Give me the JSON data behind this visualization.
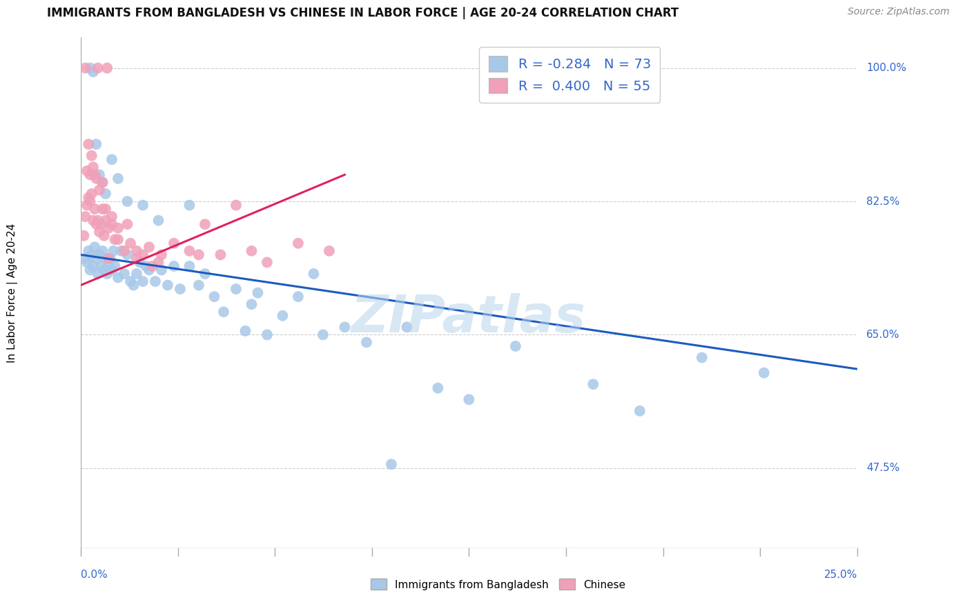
{
  "title": "IMMIGRANTS FROM BANGLADESH VS CHINESE IN LABOR FORCE | AGE 20-24 CORRELATION CHART",
  "source": "Source: ZipAtlas.com",
  "blue_label": "Immigrants from Bangladesh",
  "pink_label": "Chinese",
  "blue_R": "-0.284",
  "blue_N": "73",
  "pink_R": "0.400",
  "pink_N": "55",
  "blue_color": "#a8c8e8",
  "pink_color": "#f0a0b8",
  "blue_line_color": "#1a5bbf",
  "pink_line_color": "#e02060",
  "watermark": "ZIPatlas",
  "watermark_color": "#b8d4ec",
  "ylabel_axis": "In Labor Force | Age 20-24",
  "xmin": 0.0,
  "xmax": 25.0,
  "ymin": 37.0,
  "ymax": 104.0,
  "yticks": [
    47.5,
    65.0,
    82.5,
    100.0
  ],
  "ytick_labels": [
    "47.5%",
    "65.0%",
    "82.5%",
    "100.0%"
  ],
  "xtick_left": "0.0%",
  "xtick_right": "25.0%",
  "label_color": "#3366cc",
  "blue_line_x0": 0.0,
  "blue_line_y0": 75.5,
  "blue_line_x1": 25.0,
  "blue_line_y1": 60.5,
  "pink_line_x0": 0.0,
  "pink_line_y0": 71.5,
  "pink_line_x1": 8.5,
  "pink_line_y1": 86.0,
  "blue_pts_x": [
    0.15,
    0.2,
    0.25,
    0.3,
    0.35,
    0.4,
    0.45,
    0.5,
    0.55,
    0.6,
    0.65,
    0.7,
    0.75,
    0.8,
    0.85,
    0.9,
    0.95,
    1.0,
    1.05,
    1.1,
    1.2,
    1.3,
    1.4,
    1.5,
    1.6,
    1.7,
    1.8,
    1.9,
    2.0,
    2.1,
    2.2,
    2.4,
    2.6,
    2.8,
    3.0,
    3.2,
    3.5,
    3.8,
    4.0,
    4.3,
    4.6,
    5.0,
    5.3,
    5.7,
    6.0,
    6.5,
    7.0,
    7.8,
    8.5,
    9.2,
    10.5,
    11.5,
    12.5,
    14.0,
    16.5,
    18.0,
    20.0,
    22.0,
    0.3,
    0.4,
    0.5,
    0.6,
    0.7,
    0.8,
    1.0,
    1.2,
    1.5,
    2.0,
    2.5,
    3.5,
    5.5,
    7.5,
    10.0
  ],
  "blue_pts_y": [
    75.0,
    74.5,
    76.0,
    73.5,
    75.5,
    74.0,
    76.5,
    75.0,
    73.0,
    75.5,
    74.0,
    76.0,
    73.5,
    75.0,
    73.0,
    74.5,
    75.0,
    73.5,
    76.0,
    74.0,
    72.5,
    76.0,
    73.0,
    75.5,
    72.0,
    71.5,
    73.0,
    74.5,
    72.0,
    74.0,
    73.5,
    72.0,
    73.5,
    71.5,
    74.0,
    71.0,
    74.0,
    71.5,
    73.0,
    70.0,
    68.0,
    71.0,
    65.5,
    70.5,
    65.0,
    67.5,
    70.0,
    65.0,
    66.0,
    64.0,
    66.0,
    58.0,
    56.5,
    63.5,
    58.5,
    55.0,
    62.0,
    60.0,
    100.0,
    99.5,
    90.0,
    86.0,
    85.0,
    83.5,
    88.0,
    85.5,
    82.5,
    82.0,
    80.0,
    82.0,
    69.0,
    73.0,
    48.0
  ],
  "pink_pts_x": [
    0.1,
    0.15,
    0.2,
    0.25,
    0.3,
    0.35,
    0.4,
    0.45,
    0.5,
    0.55,
    0.6,
    0.65,
    0.7,
    0.75,
    0.8,
    0.9,
    1.0,
    1.1,
    1.2,
    1.4,
    1.6,
    1.8,
    2.0,
    2.3,
    2.6,
    3.0,
    3.5,
    4.0,
    4.5,
    5.0,
    5.5,
    6.0,
    7.0,
    8.0,
    0.2,
    0.3,
    0.4,
    0.5,
    0.6,
    0.7,
    0.8,
    0.9,
    1.0,
    1.2,
    1.5,
    0.25,
    0.35,
    0.45,
    1.8,
    2.5,
    3.8,
    0.15,
    0.55,
    0.85,
    2.2
  ],
  "pink_pts_y": [
    78.0,
    80.5,
    82.0,
    83.0,
    82.5,
    83.5,
    80.0,
    81.5,
    79.5,
    80.0,
    78.5,
    79.5,
    81.5,
    78.0,
    80.0,
    75.0,
    79.5,
    77.5,
    79.0,
    76.0,
    77.0,
    75.0,
    75.5,
    74.0,
    75.5,
    77.0,
    76.0,
    79.5,
    75.5,
    82.0,
    76.0,
    74.5,
    77.0,
    76.0,
    86.5,
    86.0,
    87.0,
    85.5,
    84.0,
    85.0,
    81.5,
    79.0,
    80.5,
    77.5,
    79.5,
    90.0,
    88.5,
    86.0,
    76.0,
    74.5,
    75.5,
    100.0,
    100.0,
    100.0,
    76.5
  ]
}
